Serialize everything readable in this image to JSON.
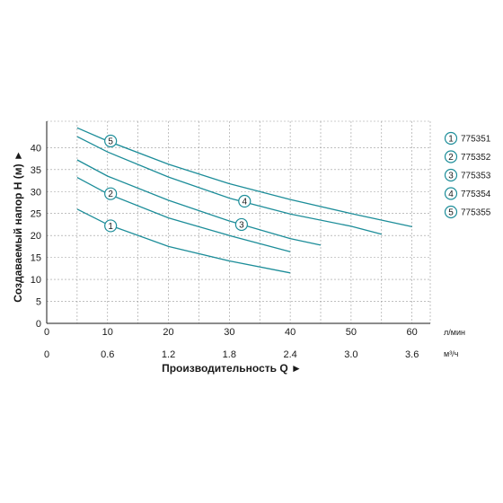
{
  "chart_data": {
    "type": "line",
    "xlabel": "Производительность Q ►",
    "ylabel": "Создаваемый напор H (м) ►",
    "x_unit": "л/мин",
    "x2_unit": "м³/ч",
    "xlim": [
      0,
      63
    ],
    "ylim": [
      0,
      46
    ],
    "x_ticks": [
      0,
      10,
      20,
      30,
      40,
      50,
      60
    ],
    "x2_ticks": [
      "0",
      "0.6",
      "1.2",
      "1.8",
      "2.4",
      "3.0",
      "3.6"
    ],
    "y_ticks": [
      0,
      5,
      10,
      15,
      20,
      25,
      30,
      35,
      40
    ],
    "grid": true,
    "legend_position": "right",
    "accent_color": "#1c8d99",
    "series": [
      {
        "name": "775351",
        "marker": "1",
        "x": [
          5,
          10,
          20,
          30,
          40
        ],
        "y": [
          26,
          22.5,
          17.5,
          14.2,
          11.5
        ],
        "marker_at": [
          10.5,
          22.2
        ]
      },
      {
        "name": "775352",
        "marker": "2",
        "x": [
          5,
          10,
          20,
          30,
          40
        ],
        "y": [
          33.2,
          29.5,
          24,
          20,
          16.3
        ],
        "marker_at": [
          10.5,
          29.5
        ]
      },
      {
        "name": "775353",
        "marker": "3",
        "x": [
          5,
          10,
          20,
          30,
          40,
          45
        ],
        "y": [
          37.2,
          33.5,
          28,
          23.3,
          19.3,
          17.8
        ],
        "marker_at": [
          32,
          22.5
        ]
      },
      {
        "name": "775354",
        "marker": "4",
        "x": [
          5,
          10,
          20,
          30,
          40,
          50,
          55
        ],
        "y": [
          42.5,
          39,
          33.3,
          28.5,
          24.9,
          22.1,
          20.3
        ],
        "marker_at": [
          32.5,
          27.8
        ]
      },
      {
        "name": "775355",
        "marker": "5",
        "x": [
          5,
          10,
          20,
          30,
          40,
          50,
          60
        ],
        "y": [
          44.5,
          41.5,
          36.2,
          31.8,
          28.2,
          25,
          22
        ],
        "marker_at": [
          10.5,
          41.5
        ]
      }
    ]
  }
}
